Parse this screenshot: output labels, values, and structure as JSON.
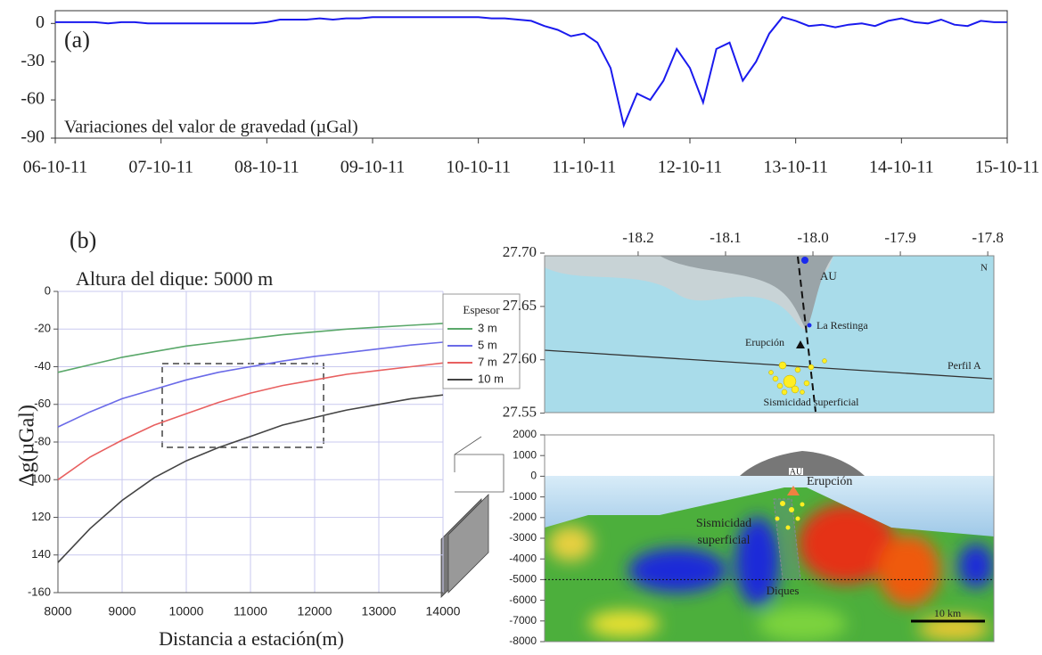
{
  "chart_data": [
    {
      "type": "line",
      "annotation": "(a)",
      "categories": [
        "06-10-11",
        null,
        null,
        null,
        null,
        null,
        null,
        null,
        "07-10-11",
        null,
        null,
        null,
        null,
        null,
        null,
        null,
        "08-10-11",
        null,
        null,
        null,
        null,
        null,
        null,
        null,
        "09-10-11",
        null,
        null,
        null,
        null,
        null,
        null,
        null,
        "10-10-11",
        null,
        null,
        null,
        null,
        null,
        null,
        null,
        "11-10-11",
        null,
        null,
        null,
        null,
        null,
        null,
        null,
        "12-10-11",
        null,
        null,
        null,
        null,
        null,
        null,
        null,
        "13-10-11",
        null,
        null,
        null,
        null,
        null,
        null,
        null,
        "14-10-11",
        null,
        null,
        null,
        null,
        null,
        null,
        null,
        "15-10-11"
      ],
      "series": [
        {
          "name": "Variaciones del valor de gravedad (µGal)",
          "color": "#1a1aee",
          "values": [
            1,
            1,
            1,
            1,
            0,
            1,
            1,
            0,
            0,
            0,
            0,
            0,
            0,
            0,
            0,
            0,
            1,
            3,
            3,
            3,
            4,
            3,
            4,
            4,
            5,
            5,
            5,
            5,
            5,
            5,
            5,
            5,
            5,
            4,
            4,
            3,
            2,
            -2,
            -5,
            -10,
            -8,
            -15,
            -35,
            -80,
            -55,
            -60,
            -45,
            -20,
            -35,
            -62,
            -20,
            -15,
            -45,
            -30,
            -8,
            5,
            2,
            -2,
            -1,
            -3,
            -1,
            0,
            -2,
            2,
            4,
            1,
            0,
            3,
            -1,
            -2,
            2,
            1,
            1
          ]
        }
      ],
      "ylim": [
        -90,
        10
      ],
      "yticks": [
        0,
        -30,
        -60,
        -90
      ]
    },
    {
      "type": "line",
      "annotation": "(b)",
      "title": "Altura del dique: 5000 m",
      "y_label": "Δg(µGal)",
      "x_label": "Distancia a estación(m)",
      "legend_title": "Espesor",
      "x": [
        8000,
        8500,
        9000,
        9500,
        10000,
        10500,
        11000,
        11500,
        12000,
        12500,
        13000,
        13500,
        14000
      ],
      "series": [
        {
          "name": "3 m",
          "color": "#5aa86a",
          "values": [
            -43,
            -39,
            -35,
            -32,
            -29,
            -27,
            -25,
            -23,
            -21.5,
            -20,
            -19,
            -18,
            -17
          ]
        },
        {
          "name": "5 m",
          "color": "#6a6ae8",
          "values": [
            -72,
            -64,
            -57,
            -52,
            -47,
            -43,
            -40,
            -37,
            -34.5,
            -32.5,
            -30.5,
            -28.5,
            -27
          ]
        },
        {
          "name": "7 m",
          "color": "#e86060",
          "values": [
            -100,
            -88,
            -79,
            -71,
            -65,
            -59,
            -54,
            -50,
            -47,
            -44,
            -42,
            -40,
            -38
          ]
        },
        {
          "name": "10 m",
          "color": "#444444",
          "values": [
            -144,
            -126,
            -111,
            -99,
            -90,
            -83,
            -77,
            -71,
            -67,
            -63,
            -60,
            -57,
            -55
          ]
        }
      ],
      "xlim": [
        8000,
        14000
      ],
      "xticks": [
        8000,
        9000,
        10000,
        11000,
        12000,
        13000,
        14000
      ],
      "ylim": [
        -160,
        0
      ],
      "yticks": [
        0,
        -20,
        -40,
        -60,
        -80,
        {
          "value": -100,
          "label": "100"
        },
        {
          "value": -120,
          "label": "120"
        },
        {
          "value": -140,
          "label": "140"
        },
        -160
      ],
      "grid": true
    },
    {
      "type": "map",
      "xlim": [
        -18.307,
        -17.793
      ],
      "xticks": [
        -18.2,
        -18.1,
        {
          "value": -18,
          "label": "-18.0"
        },
        -17.9,
        -17.8
      ],
      "ylim": [
        27.548,
        27.7
      ],
      "yticks": [
        {
          "value": 27.7,
          "label": "27.70"
        },
        27.65,
        {
          "value": 27.6,
          "label": "27.60"
        },
        27.55
      ],
      "annotations": [
        "AU",
        "La Restinga",
        "Erupción",
        "Perfil A",
        "Sismicidad superficial",
        "N"
      ]
    },
    {
      "type": "section",
      "ylim": [
        -8000,
        2000
      ],
      "yticks": [
        2000,
        1000,
        0,
        -1000,
        -2000,
        -3000,
        -4000,
        -5000,
        -6000,
        -7000,
        -8000
      ],
      "annotations": [
        "AU",
        "Erupción",
        "Sismicidad",
        "superficial",
        "Diques",
        "10 km"
      ]
    }
  ]
}
